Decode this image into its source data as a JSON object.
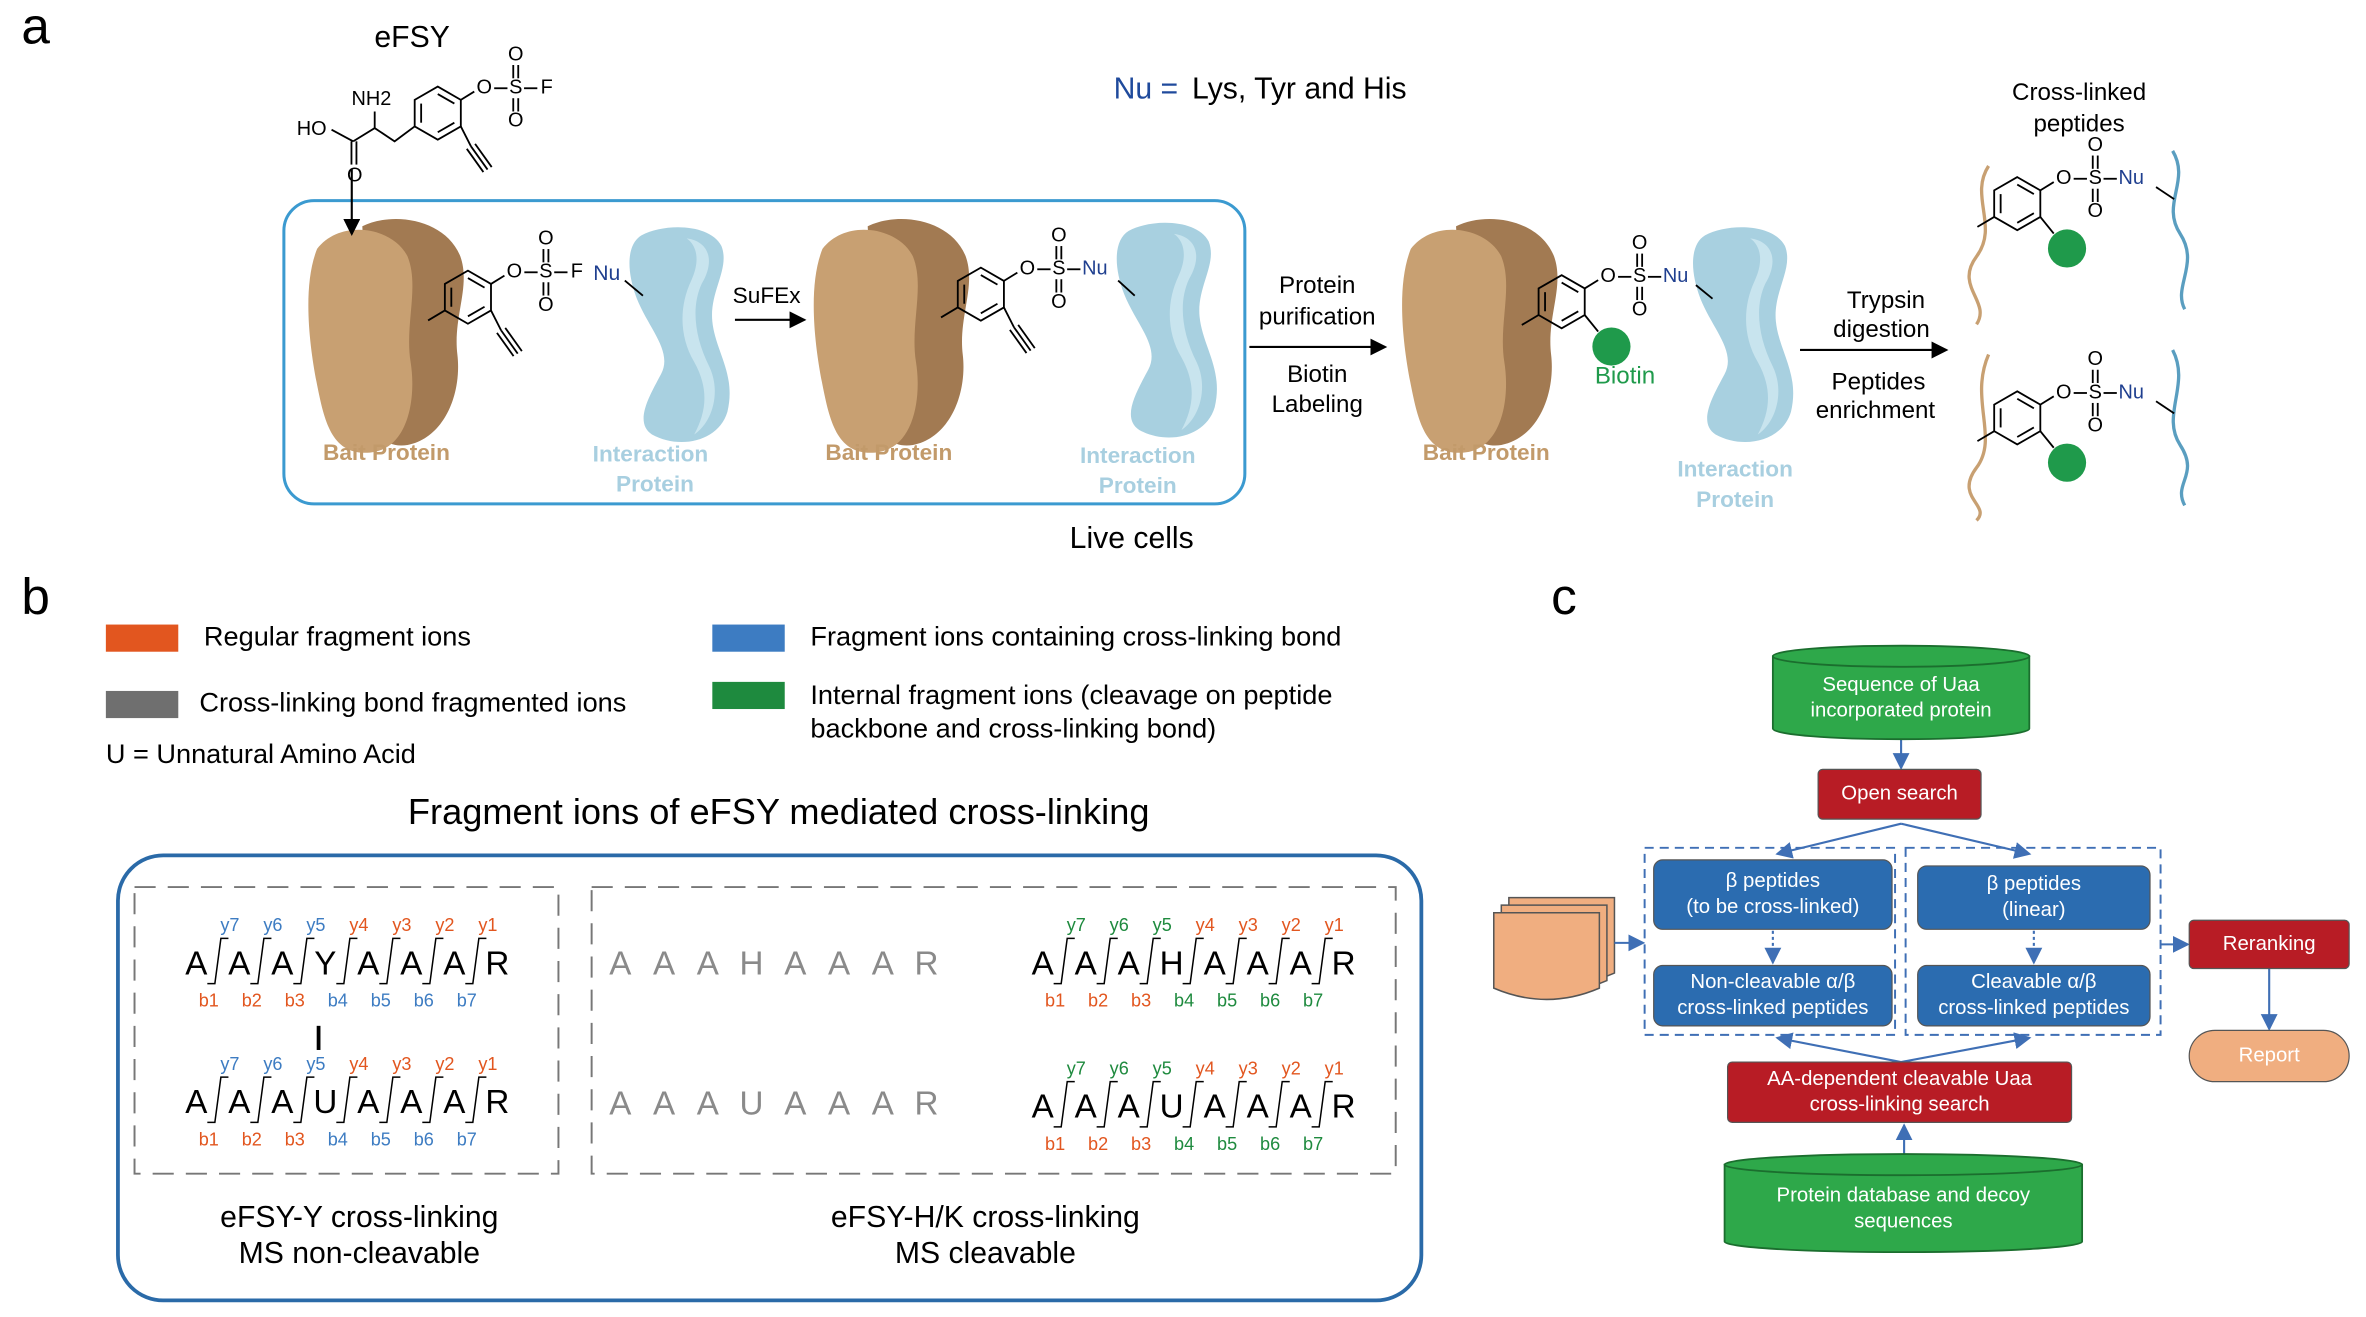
{
  "panel_a": {
    "label": "a",
    "molecule_name": "eFSY",
    "atoms": {
      "HO": "HO",
      "NH2": "NH2",
      "O": "O",
      "S": "S",
      "F": "F",
      "Nu": "Nu"
    },
    "nu_prefix": "Nu =",
    "nu_residues": "Lys, Tyr and His",
    "bait_protein": "Bait Protein",
    "interaction_protein": [
      "Interaction",
      "Protein"
    ],
    "reaction": "SuFEx",
    "step_1": [
      "Protein",
      "purification"
    ],
    "step_2": [
      "Biotin",
      "Labeling"
    ],
    "step_3": [
      "Trypsin",
      "digestion"
    ],
    "step_4": [
      "Peptides",
      "enrichment"
    ],
    "biotin": "Biotin",
    "product": [
      "Cross-linked",
      "peptides"
    ],
    "caption": "Live cells"
  },
  "panel_b": {
    "label": "b",
    "legend": [
      {
        "color": "#e2561f",
        "text": "Regular fragment ions"
      },
      {
        "color": "#6f6f6f",
        "text": "Cross-linking bond fragmented ions"
      },
      {
        "color": "#3d7cc2",
        "text": "Fragment ions containing cross-linking bond"
      },
      {
        "color": "#1e8a3e",
        "text": [
          "Internal fragment ions (cleavage on peptide",
          "backbone and cross-linking bond)"
        ]
      }
    ],
    "note": "U = Unnatural Amino Acid",
    "title": "Fragment ions of eFSY mediated cross-linking",
    "peptides": [
      {
        "sequence": "AAAYAAAR",
        "y_ions": [
          "y7",
          "y6",
          "y5",
          "y4",
          "y3",
          "y2",
          "y1"
        ],
        "y_colors": [
          "#3d7cc2",
          "#3d7cc2",
          "#3d7cc2",
          "#e2561f",
          "#e2561f",
          "#e2561f",
          "#e2561f"
        ],
        "b_ions": [
          "b1",
          "b2",
          "b3",
          "b4",
          "b5",
          "b6",
          "b7"
        ],
        "b_colors": [
          "#e2561f",
          "#e2561f",
          "#e2561f",
          "#3d7cc2",
          "#3d7cc2",
          "#3d7cc2",
          "#3d7cc2"
        ]
      },
      {
        "sequence": "AAAUAAAR",
        "y_ions": [
          "y7",
          "y6",
          "y5",
          "y4",
          "y3",
          "y2",
          "y1"
        ],
        "y_colors": [
          "#3d7cc2",
          "#3d7cc2",
          "#3d7cc2",
          "#e2561f",
          "#e2561f",
          "#e2561f",
          "#e2561f"
        ],
        "b_ions": [
          "b1",
          "b2",
          "b3",
          "b4",
          "b5",
          "b6",
          "b7"
        ],
        "b_colors": [
          "#e2561f",
          "#e2561f",
          "#e2561f",
          "#3d7cc2",
          "#3d7cc2",
          "#3d7cc2",
          "#3d7cc2"
        ]
      },
      {
        "sequence": "AAAHAAAR",
        "y_ions": [
          "y7",
          "y6",
          "y5",
          "y4",
          "y3",
          "y2",
          "y1"
        ],
        "y_colors": [
          "#1e8a3e",
          "#1e8a3e",
          "#1e8a3e",
          "#e2561f",
          "#e2561f",
          "#e2561f",
          "#e2561f"
        ],
        "b_ions": [
          "b1",
          "b2",
          "b3",
          "b4",
          "b5",
          "b6",
          "b7"
        ],
        "b_colors": [
          "#e2561f",
          "#e2561f",
          "#e2561f",
          "#1e8a3e",
          "#1e8a3e",
          "#1e8a3e",
          "#1e8a3e"
        ]
      },
      {
        "sequence": "AAAUAAAR",
        "y_ions": [
          "y7",
          "y6",
          "y5",
          "y4",
          "y3",
          "y2",
          "y1"
        ],
        "y_colors": [
          "#1e8a3e",
          "#1e8a3e",
          "#1e8a3e",
          "#e2561f",
          "#e2561f",
          "#e2561f",
          "#e2561f"
        ],
        "b_ions": [
          "b1",
          "b2",
          "b3",
          "b4",
          "b5",
          "b6",
          "b7"
        ],
        "b_colors": [
          "#e2561f",
          "#e2561f",
          "#e2561f",
          "#1e8a3e",
          "#1e8a3e",
          "#1e8a3e",
          "#1e8a3e"
        ]
      }
    ],
    "unreacted": [
      "AAAHAAAR",
      "AAAUAAAR"
    ],
    "captions": [
      [
        "eFSY-Y cross-linking",
        "MS non-cleavable"
      ],
      [
        "eFSY-H/K cross-linking",
        "MS cleavable"
      ]
    ]
  },
  "panel_c": {
    "label": "c",
    "input": [
      "Sequence of Uaa",
      "incorporated protein"
    ],
    "open_search": "Open search",
    "beta_crosslinked": [
      "β peptides",
      "(to be cross-linked)"
    ],
    "noncleavable": [
      "Non-cleavable α/β",
      "cross-linked peptides"
    ],
    "beta_linear": [
      "β peptides",
      "(linear)"
    ],
    "cleavable": [
      "Cleavable α/β",
      "cross-linked peptides"
    ],
    "search": [
      "AA-dependent cleavable Uaa",
      "cross-linking search"
    ],
    "database": [
      "Protein database and decoy",
      "sequences"
    ],
    "reranking": "Reranking",
    "report": "Report"
  }
}
